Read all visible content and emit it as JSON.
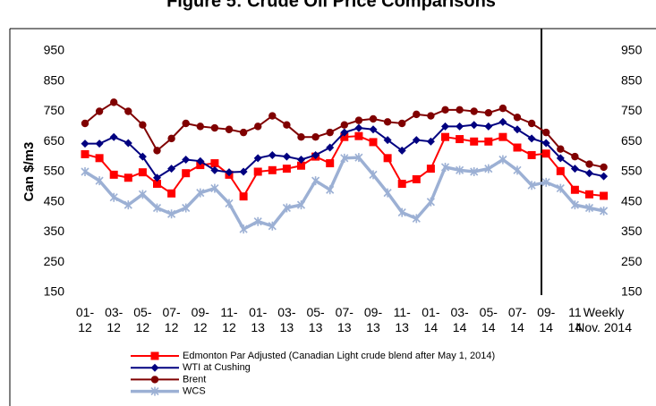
{
  "chart_data": {
    "type": "line",
    "title": "Figure 5: Crude Oil Price Comparisons",
    "y_label": "Can $/m3",
    "categories": [
      "01-\n12",
      null,
      "03-\n12",
      null,
      "05-\n12",
      null,
      "07-\n12",
      null,
      "09-\n12",
      null,
      "11-\n12",
      null,
      "01-\n13",
      null,
      "03-\n13",
      null,
      "05-\n13",
      null,
      "07-\n13",
      null,
      "09-\n13",
      null,
      "11-\n13",
      null,
      "01-\n14",
      null,
      "03-\n14",
      null,
      "05-\n14",
      null,
      "07-\n14",
      null,
      "09-\n14",
      null,
      "11\n14",
      null,
      "Weekly\nNov. 2014"
    ],
    "series": [
      {
        "name": "Edmonton Par Adjusted (Canadian Light crude blend after May 1, 2014)",
        "color": "#ff0000",
        "marker": "square",
        "values": [
          608,
          595,
          540,
          530,
          548,
          510,
          478,
          545,
          572,
          578,
          540,
          468,
          550,
          555,
          560,
          570,
          600,
          578,
          665,
          668,
          648,
          595,
          510,
          525,
          560,
          665,
          658,
          650,
          650,
          665,
          630,
          605,
          610,
          552,
          490,
          475,
          470
        ]
      },
      {
        "name": "WTI at Cushing",
        "color": "#000080",
        "marker": "diamond",
        "values": [
          643,
          643,
          665,
          645,
          600,
          530,
          560,
          590,
          585,
          555,
          548,
          550,
          595,
          605,
          600,
          590,
          605,
          630,
          680,
          695,
          690,
          655,
          620,
          655,
          650,
          700,
          700,
          705,
          700,
          715,
          690,
          660,
          645,
          595,
          560,
          545,
          535
        ]
      },
      {
        "name": "Brent",
        "color": "#800000",
        "marker": "circle",
        "values": [
          710,
          750,
          780,
          750,
          705,
          620,
          660,
          710,
          700,
          695,
          690,
          680,
          700,
          735,
          705,
          665,
          665,
          680,
          705,
          720,
          725,
          715,
          710,
          740,
          735,
          755,
          755,
          750,
          745,
          760,
          730,
          710,
          680,
          625,
          600,
          575,
          565
        ]
      },
      {
        "name": "WCS",
        "color": "#9cb0d4",
        "marker": "star",
        "values": [
          550,
          520,
          465,
          440,
          475,
          430,
          410,
          430,
          480,
          495,
          445,
          360,
          385,
          370,
          430,
          440,
          520,
          490,
          595,
          597,
          540,
          480,
          415,
          395,
          450,
          565,
          555,
          550,
          560,
          590,
          555,
          505,
          515,
          495,
          440,
          430,
          420
        ]
      }
    ],
    "ylim": [
      150,
      950
    ],
    "yticks": [
      150,
      250,
      350,
      450,
      550,
      650,
      750,
      850,
      950
    ],
    "y2lim": [
      150,
      950
    ],
    "y2ticks": [
      150,
      250,
      350,
      450,
      550,
      650,
      750,
      850,
      950
    ],
    "grid": false,
    "legend": "bottom"
  }
}
